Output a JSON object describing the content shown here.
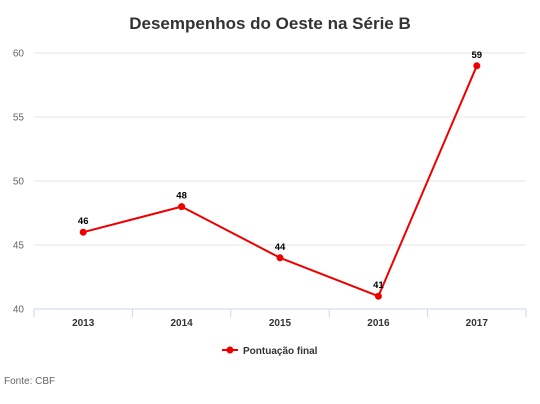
{
  "chart_data": {
    "type": "line",
    "title": "Desempenhos do Oeste na Série B",
    "categories": [
      "2013",
      "2014",
      "2015",
      "2016",
      "2017"
    ],
    "series": [
      {
        "name": "Pontuação final",
        "values": [
          46,
          48,
          44,
          41,
          59
        ],
        "color": "#ee0000"
      }
    ],
    "yticks": [
      40,
      45,
      50,
      55,
      60
    ],
    "ylim": [
      40,
      60
    ],
    "grid": true,
    "legend": "bottom-center",
    "source": "Fonte: CBF"
  }
}
